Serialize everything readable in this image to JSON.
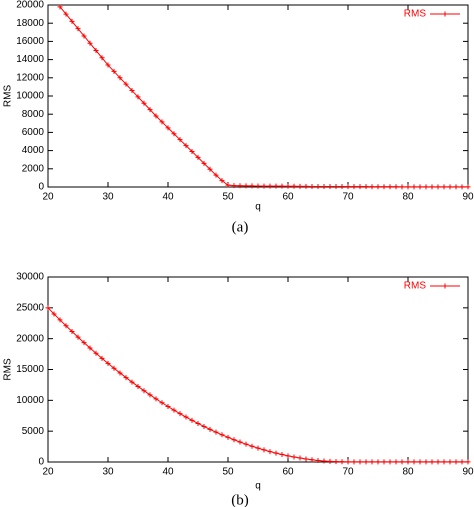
{
  "chart_data": [
    {
      "type": "line",
      "caption": "(a)",
      "xlabel": "q",
      "ylabel": "RMS",
      "xlim": [
        20,
        90
      ],
      "xticks": [
        20,
        30,
        40,
        50,
        60,
        70,
        80,
        90
      ],
      "ylim": [
        0,
        20000
      ],
      "yticks": [
        0,
        2000,
        4000,
        6000,
        8000,
        10000,
        12000,
        14000,
        16000,
        18000,
        20000
      ],
      "legend": "top-right",
      "x": [
        22,
        23,
        24,
        25,
        26,
        27,
        28,
        29,
        30,
        31,
        32,
        33,
        34,
        35,
        36,
        37,
        38,
        39,
        40,
        41,
        42,
        43,
        44,
        45,
        46,
        47,
        48,
        49,
        50,
        51,
        52,
        53,
        54,
        55,
        56,
        57,
        58,
        59,
        60,
        61,
        62,
        63,
        64,
        65,
        66,
        67,
        68,
        69,
        70,
        71,
        72,
        73,
        74,
        75,
        76,
        77,
        78,
        79,
        80,
        81,
        82,
        83,
        84,
        85,
        86,
        87,
        88,
        89,
        90
      ],
      "series": [
        {
          "name": "RMS",
          "color": "#ff0000",
          "values": [
            19800,
            19000,
            18200,
            17400,
            16600,
            15800,
            15000,
            14200,
            13400,
            12700,
            12000,
            11300,
            10600,
            9900,
            9200,
            8500,
            7800,
            7150,
            6500,
            5850,
            5200,
            4550,
            3900,
            3250,
            2600,
            1950,
            1300,
            700,
            200,
            150,
            140,
            130,
            120,
            110,
            100,
            100,
            90,
            90,
            80,
            80,
            70,
            70,
            60,
            60,
            60,
            50,
            50,
            50,
            40,
            40,
            40,
            40,
            30,
            30,
            30,
            30,
            30,
            20,
            20,
            20,
            20,
            20,
            20,
            20,
            20,
            20,
            20,
            20,
            20
          ]
        }
      ]
    },
    {
      "type": "line",
      "caption": "(b)",
      "xlabel": "q",
      "ylabel": "RMS",
      "xlim": [
        20,
        90
      ],
      "xticks": [
        20,
        30,
        40,
        50,
        60,
        70,
        80,
        90
      ],
      "ylim": [
        0,
        30000
      ],
      "yticks": [
        0,
        5000,
        10000,
        15000,
        20000,
        25000,
        30000
      ],
      "legend": "top-right",
      "x": [
        20,
        21,
        22,
        23,
        24,
        25,
        26,
        27,
        28,
        29,
        30,
        31,
        32,
        33,
        34,
        35,
        36,
        37,
        38,
        39,
        40,
        41,
        42,
        43,
        44,
        45,
        46,
        47,
        48,
        49,
        50,
        51,
        52,
        53,
        54,
        55,
        56,
        57,
        58,
        59,
        60,
        61,
        62,
        63,
        64,
        65,
        66,
        67,
        68,
        69,
        70,
        71,
        72,
        73,
        74,
        75,
        76,
        77,
        78,
        79,
        80,
        81,
        82,
        83,
        84,
        85,
        86,
        87,
        88,
        89,
        90
      ],
      "series": [
        {
          "name": "RMS",
          "color": "#ff0000",
          "values": [
            25000,
            24010,
            23040,
            22090,
            21160,
            20250,
            19360,
            18490,
            17640,
            16810,
            16000,
            15210,
            14440,
            13690,
            12960,
            12250,
            11560,
            10890,
            10240,
            9610,
            9000,
            8410,
            7840,
            7290,
            6760,
            6250,
            5760,
            5290,
            4840,
            4410,
            4000,
            3610,
            3240,
            2890,
            2560,
            2250,
            1960,
            1690,
            1440,
            1210,
            1000,
            810,
            640,
            490,
            360,
            250,
            160,
            100,
            60,
            40,
            30,
            20,
            20,
            20,
            20,
            20,
            20,
            20,
            20,
            20,
            20,
            20,
            20,
            20,
            20,
            20,
            20,
            20,
            20,
            20,
            20
          ]
        }
      ]
    }
  ]
}
